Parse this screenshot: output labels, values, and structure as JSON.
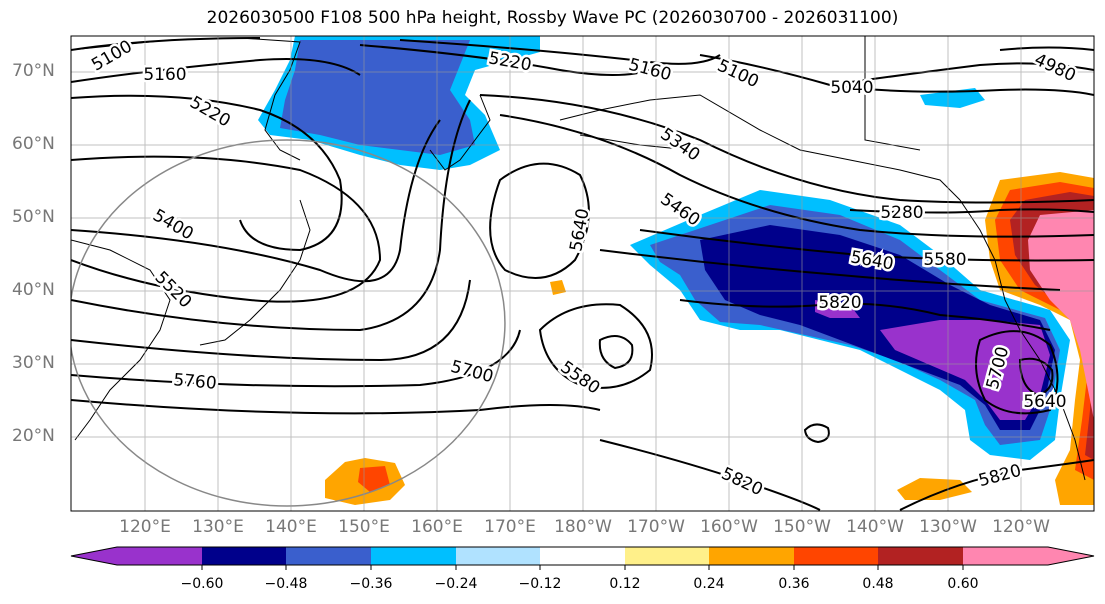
{
  "title": "2026030500 F108 500 hPa height, Rossby Wave PC (2026030700 - 2026031100)",
  "lat_labels": [
    "70°N",
    "60°N",
    "50°N",
    "40°N",
    "30°N",
    "20°N"
  ],
  "lon_labels": [
    "120°E",
    "130°E",
    "140°E",
    "150°E",
    "160°E",
    "170°E",
    "180°W",
    "170°W",
    "160°W",
    "150°W",
    "140°W",
    "130°W",
    "120°W"
  ],
  "contour_labels": [
    "5100",
    "5160",
    "5220",
    "5220",
    "5160",
    "5100",
    "5040",
    "4980",
    "5340",
    "5460",
    "5280",
    "5580",
    "5640",
    "5820",
    "5400",
    "5520",
    "5640",
    "5700",
    "5580",
    "5760",
    "5700",
    "5640",
    "5820",
    "5820"
  ],
  "colorbar": {
    "ticks": [
      "−0.60",
      "−0.48",
      "−0.36",
      "−0.24",
      "−0.12",
      "0.12",
      "0.24",
      "0.36",
      "0.48",
      "0.60"
    ],
    "colors": [
      "#9932cc",
      "#00008b",
      "#3a5fcd",
      "#00bfff",
      "#b0e2ff",
      "#ffffff",
      "#fff08a",
      "#ffa500",
      "#ff4500",
      "#b22222",
      "#ff86b0",
      "#ff86b0"
    ]
  },
  "colors": {
    "neg_strong": "#9932cc",
    "neg_dark": "#00008b",
    "neg_mid": "#3a5fcd",
    "neg_light": "#00bfff",
    "pos_mid": "#ffa500",
    "pos_strong": "#ff4500",
    "pos_dark": "#b22222",
    "pos_max": "#ff86b0"
  }
}
